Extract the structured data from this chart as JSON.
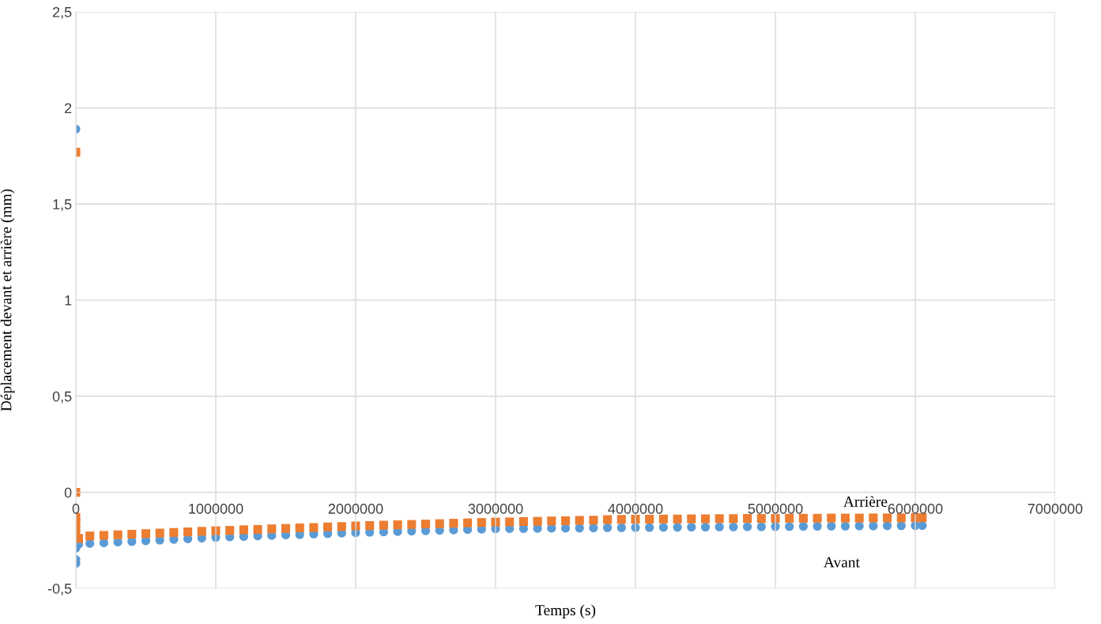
{
  "chart_data": {
    "type": "scatter",
    "xlabel": "Temps (s)",
    "ylabel": "Déplacement devant et arrière (mm)",
    "xlim": [
      0,
      7000000
    ],
    "xticks": [
      0,
      1000000,
      2000000,
      3000000,
      4000000,
      5000000,
      6000000,
      7000000
    ],
    "ylim": [
      -0.5,
      2.5
    ],
    "yticks": [
      {
        "value": -0.5,
        "label": "-0,5"
      },
      0,
      {
        "value": 0.5,
        "label": "0,5"
      },
      1,
      {
        "value": 1.5,
        "label": "1,5"
      },
      2,
      {
        "value": 2.5,
        "label": "2,5"
      }
    ],
    "grid": true,
    "legend": false,
    "series": [
      {
        "name": "Avant",
        "color": "#5b9bd5",
        "marker": "circle",
        "x": [
          0,
          0,
          0,
          0,
          20000,
          100000,
          200000,
          300000,
          400000,
          500000,
          600000,
          700000,
          800000,
          900000,
          1000000,
          1100000,
          1200000,
          1300000,
          1400000,
          1500000,
          1600000,
          1700000,
          1800000,
          1900000,
          2000000,
          2100000,
          2200000,
          2300000,
          2400000,
          2500000,
          2600000,
          2700000,
          2800000,
          2900000,
          3000000,
          3100000,
          3200000,
          3300000,
          3400000,
          3500000,
          3600000,
          3700000,
          3800000,
          3900000,
          4000000,
          4100000,
          4200000,
          4300000,
          4400000,
          4500000,
          4600000,
          4700000,
          4800000,
          4900000,
          5000000,
          5100000,
          5200000,
          5300000,
          5400000,
          5500000,
          5600000,
          5700000,
          5800000,
          5900000,
          6000000,
          6050000
        ],
        "values": [
          1.89,
          -0.29,
          -0.35,
          -0.37,
          -0.27,
          -0.266,
          -0.263,
          -0.259,
          -0.256,
          -0.252,
          -0.249,
          -0.245,
          -0.242,
          -0.238,
          -0.235,
          -0.232,
          -0.23,
          -0.227,
          -0.225,
          -0.222,
          -0.22,
          -0.217,
          -0.215,
          -0.212,
          -0.21,
          -0.208,
          -0.206,
          -0.204,
          -0.202,
          -0.2,
          -0.198,
          -0.196,
          -0.194,
          -0.192,
          -0.19,
          -0.189,
          -0.189,
          -0.188,
          -0.187,
          -0.187,
          -0.186,
          -0.185,
          -0.184,
          -0.184,
          -0.183,
          -0.183,
          -0.182,
          -0.182,
          -0.181,
          -0.181,
          -0.18,
          -0.18,
          -0.179,
          -0.179,
          -0.178,
          -0.178,
          -0.177,
          -0.177,
          -0.176,
          -0.176,
          -0.175,
          -0.175,
          -0.174,
          -0.174,
          -0.173,
          -0.173
        ]
      },
      {
        "name": "Arrière",
        "color": "#ed7d31",
        "marker": "square",
        "x": [
          0,
          0,
          0,
          0,
          0,
          20000,
          100000,
          200000,
          300000,
          400000,
          500000,
          600000,
          700000,
          800000,
          900000,
          1000000,
          1100000,
          1200000,
          1300000,
          1400000,
          1500000,
          1600000,
          1700000,
          1800000,
          1900000,
          2000000,
          2100000,
          2200000,
          2300000,
          2400000,
          2500000,
          2600000,
          2700000,
          2800000,
          2900000,
          3000000,
          3100000,
          3200000,
          3300000,
          3400000,
          3500000,
          3600000,
          3700000,
          3800000,
          3900000,
          4000000,
          4100000,
          4200000,
          4300000,
          4400000,
          4500000,
          4600000,
          4700000,
          4800000,
          4900000,
          5000000,
          5100000,
          5200000,
          5300000,
          5400000,
          5500000,
          5600000,
          5700000,
          5800000,
          5900000,
          6000000,
          6050000
        ],
        "values": [
          1.77,
          0,
          -0.13,
          -0.16,
          -0.2,
          -0.24,
          -0.227,
          -0.224,
          -0.221,
          -0.218,
          -0.215,
          -0.212,
          -0.209,
          -0.206,
          -0.203,
          -0.2,
          -0.198,
          -0.195,
          -0.193,
          -0.19,
          -0.188,
          -0.185,
          -0.183,
          -0.18,
          -0.178,
          -0.175,
          -0.173,
          -0.171,
          -0.169,
          -0.167,
          -0.165,
          -0.163,
          -0.161,
          -0.159,
          -0.157,
          -0.155,
          -0.154,
          -0.152,
          -0.151,
          -0.149,
          -0.148,
          -0.146,
          -0.145,
          -0.142,
          -0.141,
          -0.14,
          -0.14,
          -0.139,
          -0.139,
          -0.138,
          -0.138,
          -0.137,
          -0.137,
          -0.136,
          -0.136,
          -0.136,
          -0.135,
          -0.135,
          -0.135,
          -0.134,
          -0.134,
          -0.134,
          -0.133,
          -0.133,
          -0.133,
          -0.132,
          -0.132
        ]
      }
    ]
  }
}
